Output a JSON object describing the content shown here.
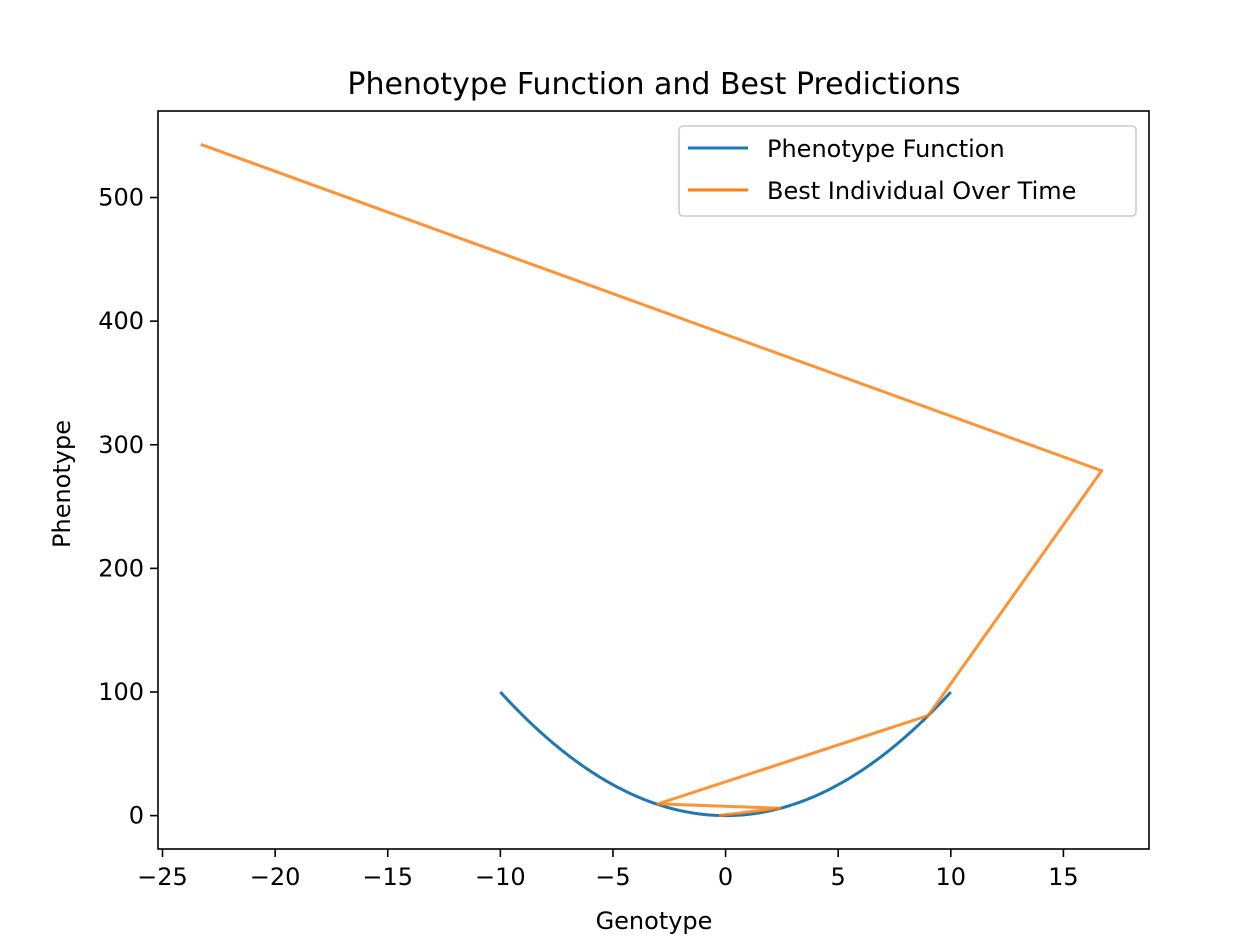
{
  "chart_data": {
    "type": "line",
    "title": "Phenotype Function and Best Predictions",
    "xlabel": "Genotype",
    "ylabel": "Phenotype",
    "xlim": [
      -25.2,
      18.8
    ],
    "ylim": [
      -27,
      570
    ],
    "xticks": [
      -25,
      -20,
      -15,
      -10,
      -5,
      0,
      5,
      10,
      15
    ],
    "xtick_labels": [
      "−25",
      "−20",
      "−15",
      "−10",
      "−5",
      "0",
      "5",
      "10",
      "15"
    ],
    "yticks": [
      0,
      100,
      200,
      300,
      400,
      500
    ],
    "ytick_labels": [
      "0",
      "100",
      "200",
      "300",
      "400",
      "500"
    ],
    "grid": false,
    "legend_position": "top-right",
    "series": [
      {
        "name": "Phenotype Function",
        "color": "#1f77b4",
        "function": "x^2",
        "x_range": [
          -10,
          10
        ]
      },
      {
        "name": "Best Individual Over Time",
        "color": "#ff7f0e",
        "x": [
          -23.3,
          16.7,
          9.0,
          -3.0,
          2.4,
          -0.3
        ],
        "y": [
          543,
          279,
          81,
          9.5,
          6,
          0
        ]
      }
    ]
  }
}
